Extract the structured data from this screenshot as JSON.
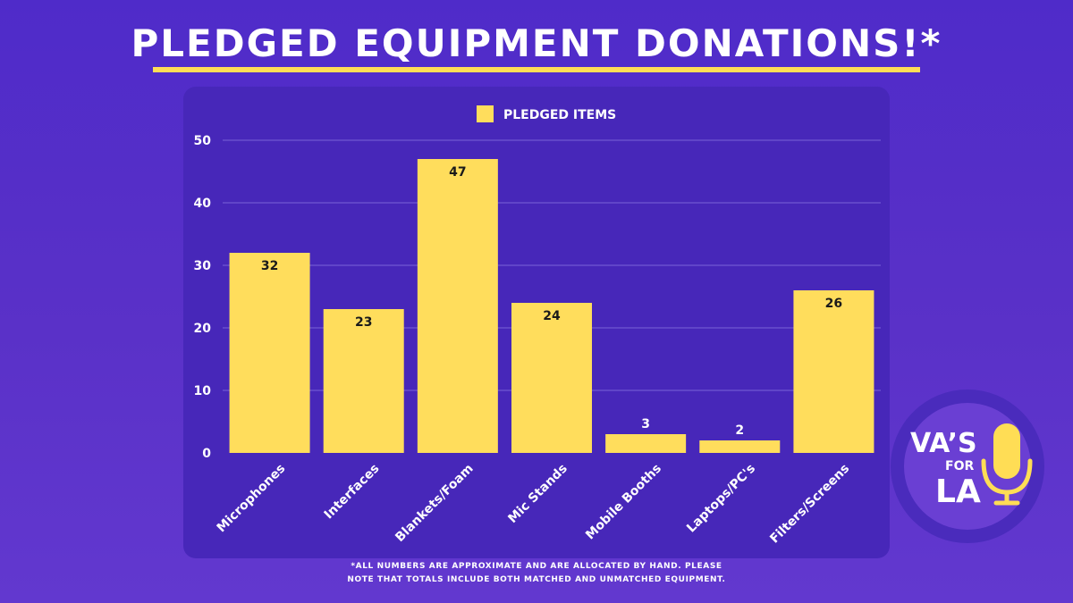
{
  "title": "PLEDGED EQUIPMENT DONATIONS!*",
  "footnote": {
    "line1": "*ALL NUMBERS ARE APPROXIMATE AND ARE ALLOCATED BY HAND. PLEASE",
    "line2": "NOTE THAT TOTALS INCLUDE BOTH MATCHED AND UNMATCHED EQUIPMENT."
  },
  "logo": {
    "line1": "VA’S",
    "line2": "FOR",
    "line3": "LA",
    "icon": "microphone-icon"
  },
  "colors": {
    "background": "#5630c8",
    "panel": "#4727b9",
    "bar": "#ffdd5c",
    "accent": "#ffdd55",
    "text": "#ffffff",
    "value_label": "#1a1a1a"
  },
  "chart_data": {
    "type": "bar",
    "categories": [
      "Microphones",
      "Interfaces",
      "Blankets/Foam",
      "Mic Stands",
      "Mobile Booths",
      "Laptops/PC's",
      "Filters/Screens"
    ],
    "series": [
      {
        "name": "PLEDGED ITEMS",
        "values": [
          32,
          23,
          47,
          24,
          3,
          2,
          26
        ]
      }
    ],
    "ylim": [
      0,
      50
    ],
    "yticks": [
      0,
      10,
      20,
      30,
      40,
      50
    ],
    "legend_position": "top-center",
    "grid": true,
    "xlabel": "",
    "ylabel": ""
  }
}
